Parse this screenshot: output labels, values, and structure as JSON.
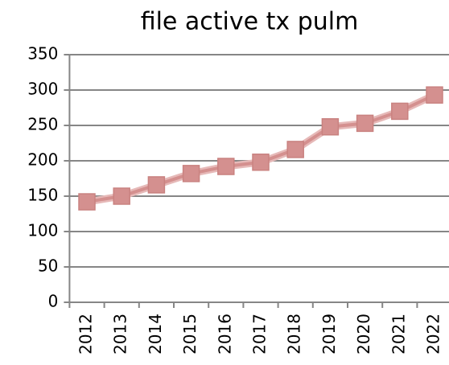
{
  "chart_data": {
    "type": "line",
    "title": "file active tx pulm",
    "categories": [
      "2012",
      "2013",
      "2014",
      "2015",
      "2016",
      "2017",
      "2018",
      "2019",
      "2020",
      "2021",
      "2022"
    ],
    "series": [
      {
        "name": "file active tx pulm",
        "color": "#d4908f",
        "values": [
          142,
          150,
          166,
          182,
          192,
          198,
          216,
          248,
          253,
          270,
          293
        ]
      }
    ],
    "ylim": [
      0,
      350
    ],
    "yticks": [
      0,
      50,
      100,
      150,
      200,
      250,
      300,
      350
    ],
    "grid": true
  }
}
